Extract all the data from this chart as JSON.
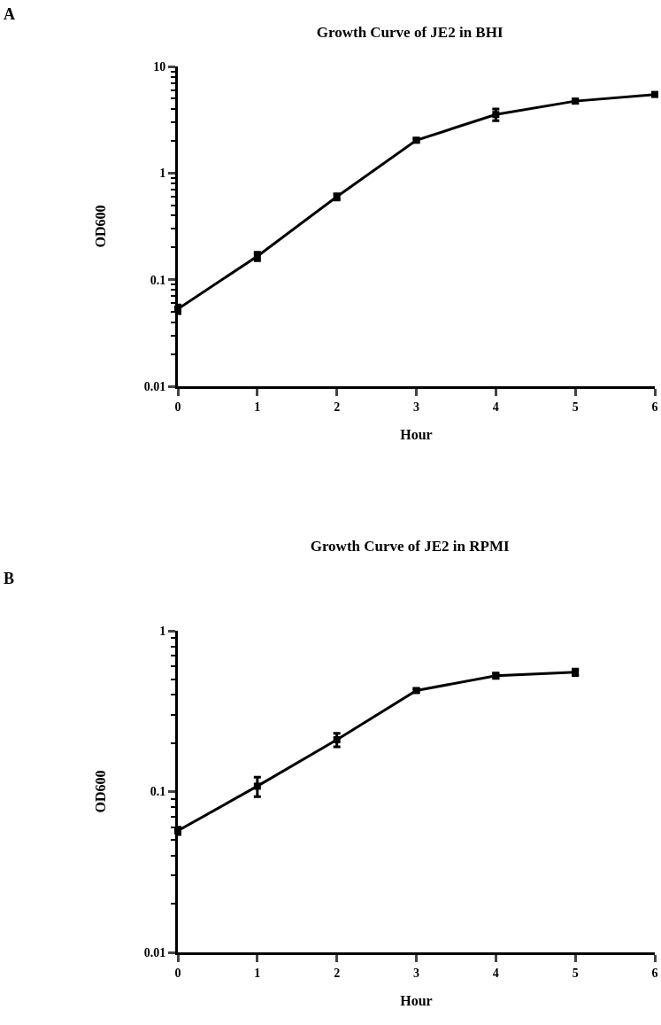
{
  "chart_data": [
    {
      "type": "line",
      "title": "Growth Curve of JE2 in BHI",
      "xlabel": "Hour",
      "ylabel": "OD600",
      "annotations": [
        "A"
      ],
      "x": [
        0,
        1,
        2,
        3,
        4,
        5,
        6
      ],
      "series": [
        {
          "color": "#000000",
          "values": [
            0.053,
            0.166,
            0.6,
            2.03,
            3.54,
            4.73,
            5.46
          ],
          "errors": [
            0.005,
            0.015,
            0.04,
            0.08,
            0.45,
            0.2,
            0.15
          ]
        }
      ],
      "log": "y",
      "xlim": [
        0,
        6
      ],
      "xticks": [
        0,
        1,
        2,
        3,
        4,
        5,
        6
      ],
      "ylim": [
        0.01,
        10
      ],
      "yticks": [
        0.01,
        0.1,
        1,
        10
      ],
      "marker": "square",
      "line_style": "solid",
      "grid": false
    },
    {
      "type": "line",
      "title": "Growth Curve of JE2 in RPMI",
      "xlabel": "Hour",
      "ylabel": "OD600",
      "annotations": [
        "B"
      ],
      "x": [
        0,
        1,
        2,
        3,
        4,
        5
      ],
      "series": [
        {
          "color": "#000000",
          "values": [
            0.057,
            0.108,
            0.21,
            0.425,
            0.525,
            0.552
          ],
          "errors": [
            0.003,
            0.015,
            0.02,
            0.01,
            0.02,
            0.025
          ]
        }
      ],
      "log": "y",
      "xlim": [
        0,
        6
      ],
      "xticks": [
        0,
        1,
        2,
        3,
        4,
        5,
        6
      ],
      "ylim": [
        0.01,
        1
      ],
      "yticks": [
        0.01,
        0.1,
        1
      ],
      "marker": "square",
      "line_style": "solid",
      "grid": false
    }
  ]
}
